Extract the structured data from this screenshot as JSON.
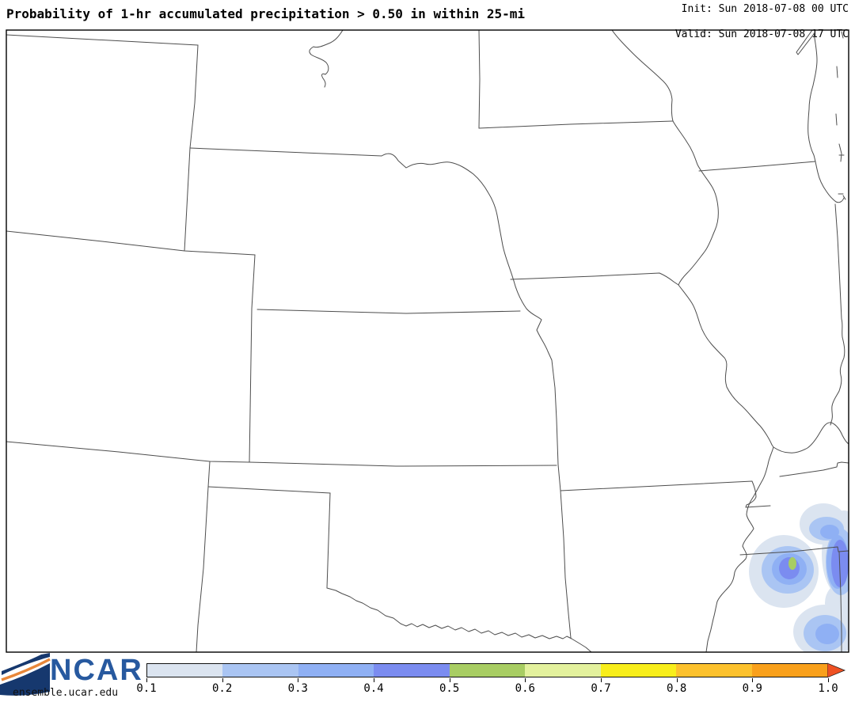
{
  "header": {
    "title": "Probability of 1-hr accumulated precipitation > 0.50 in within 25-mi",
    "init_line": "Init: Sun 2018-07-08 00 UTC",
    "valid_line": "Valid: Sun 2018-07-08 17 UTC"
  },
  "branding": {
    "logo_text": "NCAR",
    "website": "ensemble.ucar.edu",
    "navy": "#16386e",
    "orange": "#e8873a",
    "wordmark_color": "#27599f"
  },
  "chart_data": {
    "type": "heatmap",
    "title": "Probability of 1-hr accumulated precipitation > 0.50 in within 25-mi",
    "init_time": "Sun 2018-07-08 00 UTC",
    "valid_time": "Sun 2018-07-08 17 UTC",
    "region": "Central United States (state outlines, rivers, Lake Michigan)",
    "colorbar": {
      "orientation": "horizontal",
      "ticks": [
        "0.1",
        "0.2",
        "0.3",
        "0.4",
        "0.5",
        "0.6",
        "0.7",
        "0.8",
        "0.9",
        "1.0"
      ],
      "colors": [
        "#dbe4f0",
        "#aac5f3",
        "#8fb0f4",
        "#7b8cf0",
        "#a8cd63",
        "#e3f19d",
        "#f8ee1b",
        "#fcc12d",
        "#f9a01b"
      ],
      "arrow_color": "#ef5123",
      "range": [
        0.1,
        1.0
      ]
    },
    "features": [
      {
        "name": "probability-maximum",
        "bin": "0.5-0.6",
        "note": "small green core inside blue shaded area near lower-right of map (NW Mississippi / SW Tennessee)"
      },
      {
        "name": "shaded-areas",
        "bins": [
          "0.1-0.2",
          "0.2-0.3",
          "0.3-0.4",
          "0.4-0.5"
        ],
        "note": "nested blue contour blobs along lower-right map edge, partly clipped by frame"
      }
    ]
  },
  "colors": {
    "state_line": "#4d4d4d",
    "frame": "#000000",
    "background": "#ffffff"
  }
}
